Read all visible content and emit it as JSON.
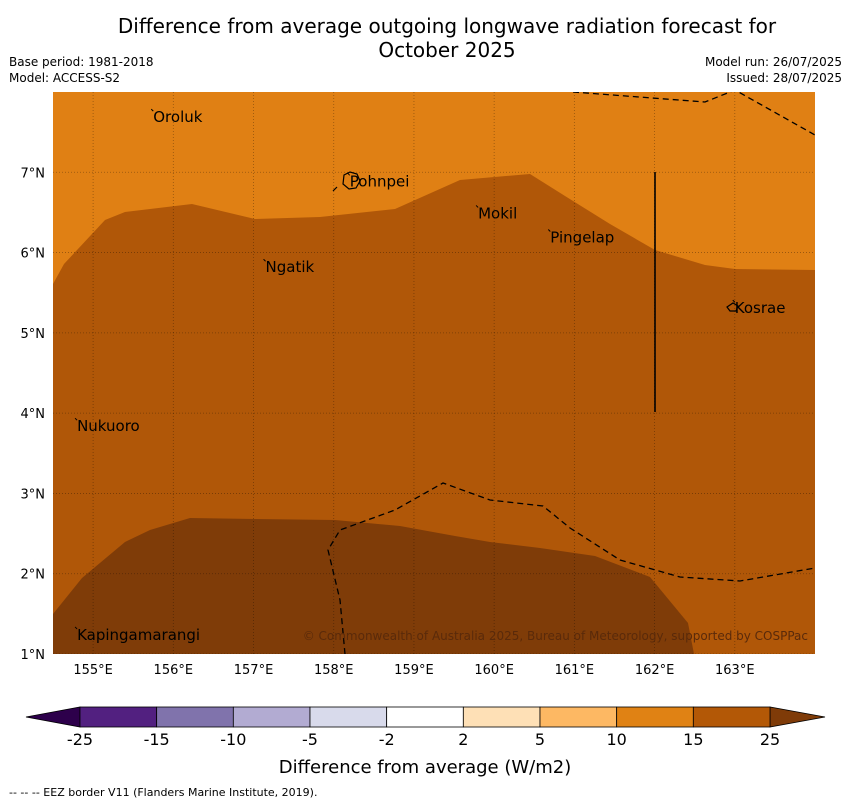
{
  "title_line1": "Difference from average outgoing longwave radiation forecast for",
  "title_line2": "October 2025",
  "meta_left": [
    "Base period: 1981-2018",
    "Model: ACCESS-S2"
  ],
  "meta_right": [
    "Model run: 26/07/2025",
    "Issued: 28/07/2025"
  ],
  "copyright": "© Commonwealth of Australia 2025, Bureau of Meteorology, supported by COSPPac",
  "footnote": "-- -- -- EEZ border V11 (Flanders Marine Institute, 2019).",
  "map": {
    "lon_range": [
      154.5,
      164.0
    ],
    "lat_range": [
      1.0,
      8.0
    ],
    "lon_ticks": [
      "155°E",
      "156°E",
      "157°E",
      "158°E",
      "159°E",
      "160°E",
      "161°E",
      "162°E",
      "163°E"
    ],
    "lat_ticks": [
      "1°N",
      "2°N",
      "3°N",
      "4°N",
      "5°N",
      "6°N",
      "7°N"
    ],
    "places": [
      {
        "name": "Oroluk",
        "lon": 155.75,
        "lat": 7.7
      },
      {
        "name": "Pohnpei",
        "lon": 158.2,
        "lat": 6.9
      },
      {
        "name": "Mokil",
        "lon": 159.8,
        "lat": 6.5
      },
      {
        "name": "Pingelap",
        "lon": 160.7,
        "lat": 6.2
      },
      {
        "name": "Ngatik",
        "lon": 157.15,
        "lat": 5.83
      },
      {
        "name": "Kosrae",
        "lon": 163.0,
        "lat": 5.32
      },
      {
        "name": "Nukuoro",
        "lon": 154.8,
        "lat": 3.85
      },
      {
        "name": "Kapingamarangi",
        "lon": 154.8,
        "lat": 1.25
      }
    ],
    "colors": {
      "band_10_15": "#e08014",
      "band_15_25": "#b05708",
      "band_gt25": "#7f3c08"
    }
  },
  "colorbar": {
    "label": "Difference from average (W/m2)",
    "ticks": [
      "-25",
      "-15",
      "-10",
      "-5",
      "-2",
      "2",
      "5",
      "10",
      "15",
      "25"
    ],
    "colors": [
      "#522080",
      "#8073ac",
      "#b2abd2",
      "#d8daeb",
      "#ffffff",
      "#fee0b6",
      "#fdb863",
      "#e08214",
      "#b35806"
    ],
    "under_color": "#2d004b",
    "over_color": "#7f3b08"
  }
}
